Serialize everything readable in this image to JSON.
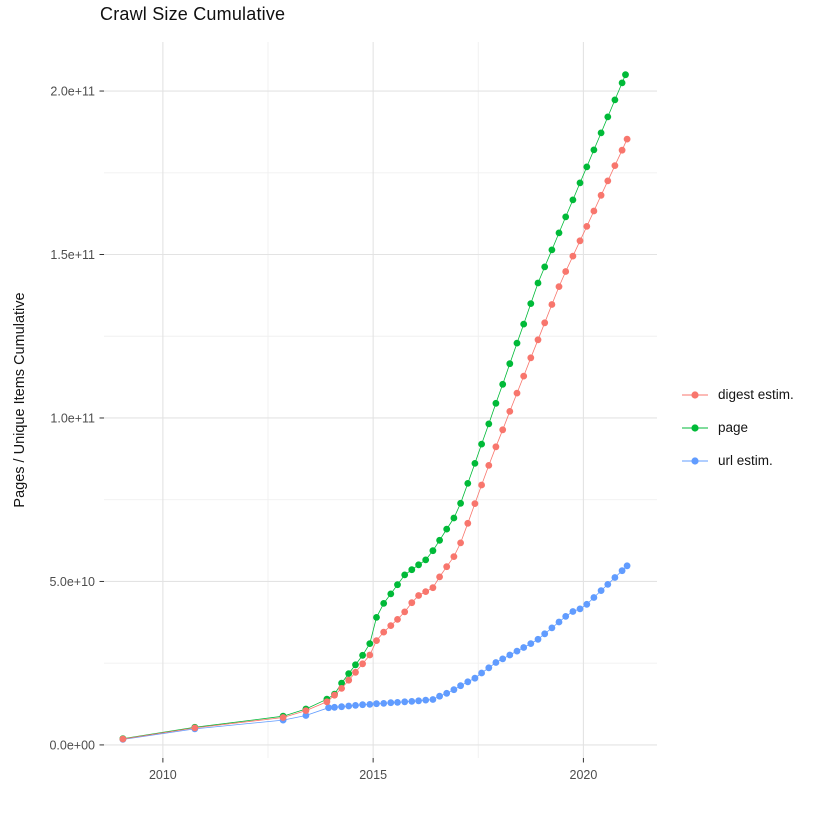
{
  "title": "Crawl Size Cumulative",
  "chart_data": {
    "type": "scatter",
    "title": "Crawl Size Cumulative",
    "xlabel": "",
    "ylabel": "Pages / Unique Items Cumulative",
    "grid": true,
    "legend_position": "right",
    "x_ticks": [
      {
        "label": "2010",
        "value": 2010
      },
      {
        "label": "2015",
        "value": 2015
      },
      {
        "label": "2020",
        "value": 2020
      }
    ],
    "x_minor": [
      2012.5,
      2017.5
    ],
    "y_ticks": [
      {
        "label": "0.0e+00",
        "billions": 0
      },
      {
        "label": "5.0e+10",
        "billions": 50
      },
      {
        "label": "1.0e+11",
        "billions": 100
      },
      {
        "label": "1.5e+11",
        "billions": 150
      },
      {
        "label": "2.0e+11",
        "billions": 200
      }
    ],
    "y_minor_billions": [
      25,
      75,
      125,
      175
    ],
    "xlim": [
      2008.6,
      2021.75
    ],
    "ylim_billions": [
      -4,
      215
    ],
    "y_unit": "pages / unique items (value in billions)",
    "series": [
      {
        "name": "digest estim.",
        "color": "#F8766D",
        "points_year_billions": [
          [
            2009.05,
            1.8
          ],
          [
            2010.76,
            5.2
          ],
          [
            2012.86,
            8.4
          ],
          [
            2013.4,
            10.5
          ],
          [
            2013.9,
            13.2
          ],
          [
            2014.08,
            15.2
          ],
          [
            2014.25,
            17.3
          ],
          [
            2014.42,
            19.8
          ],
          [
            2014.58,
            22.2
          ],
          [
            2014.75,
            24.8
          ],
          [
            2014.92,
            27.5
          ],
          [
            2015.08,
            31.9
          ],
          [
            2015.25,
            34.5
          ],
          [
            2015.42,
            36.5
          ],
          [
            2015.58,
            38.4
          ],
          [
            2015.75,
            40.7
          ],
          [
            2015.92,
            43.5
          ],
          [
            2016.08,
            45.7
          ],
          [
            2016.25,
            46.9
          ],
          [
            2016.42,
            48.1
          ],
          [
            2016.58,
            51.4
          ],
          [
            2016.75,
            54.5
          ],
          [
            2016.92,
            57.6
          ],
          [
            2017.08,
            61.8
          ],
          [
            2017.25,
            67.8
          ],
          [
            2017.42,
            73.8
          ],
          [
            2017.58,
            79.5
          ],
          [
            2017.75,
            85.5
          ],
          [
            2017.92,
            91.2
          ],
          [
            2018.08,
            96.4
          ],
          [
            2018.25,
            102.0
          ],
          [
            2018.42,
            107.6
          ],
          [
            2018.58,
            112.8
          ],
          [
            2018.75,
            118.4
          ],
          [
            2018.92,
            123.9
          ],
          [
            2019.08,
            129.1
          ],
          [
            2019.25,
            134.7
          ],
          [
            2019.42,
            140.2
          ],
          [
            2019.58,
            144.8
          ],
          [
            2019.75,
            149.5
          ],
          [
            2019.92,
            154.2
          ],
          [
            2020.08,
            158.6
          ],
          [
            2020.25,
            163.3
          ],
          [
            2020.42,
            168.1
          ],
          [
            2020.58,
            172.5
          ],
          [
            2020.75,
            177.2
          ],
          [
            2020.92,
            181.9
          ],
          [
            2021.04,
            185.3
          ]
        ]
      },
      {
        "name": "page",
        "color": "#00BA38",
        "points_year_billions": [
          [
            2009.05,
            1.9
          ],
          [
            2010.76,
            5.4
          ],
          [
            2012.86,
            8.8
          ],
          [
            2013.4,
            11.0
          ],
          [
            2013.9,
            14.0
          ],
          [
            2014.08,
            15.5
          ],
          [
            2014.25,
            18.9
          ],
          [
            2014.42,
            21.8
          ],
          [
            2014.58,
            24.5
          ],
          [
            2014.75,
            27.4
          ],
          [
            2014.92,
            31.0
          ],
          [
            2015.08,
            39.0
          ],
          [
            2015.25,
            43.3
          ],
          [
            2015.42,
            46.2
          ],
          [
            2015.58,
            49.0
          ],
          [
            2015.75,
            52.0
          ],
          [
            2015.92,
            53.6
          ],
          [
            2016.08,
            55.1
          ],
          [
            2016.25,
            56.6
          ],
          [
            2016.42,
            59.4
          ],
          [
            2016.58,
            62.6
          ],
          [
            2016.75,
            66.0
          ],
          [
            2016.92,
            69.4
          ],
          [
            2017.08,
            73.9
          ],
          [
            2017.25,
            80.0
          ],
          [
            2017.42,
            86.1
          ],
          [
            2017.58,
            92.0
          ],
          [
            2017.75,
            98.2
          ],
          [
            2017.92,
            104.5
          ],
          [
            2018.08,
            110.3
          ],
          [
            2018.25,
            116.6
          ],
          [
            2018.42,
            122.9
          ],
          [
            2018.58,
            128.7
          ],
          [
            2018.75,
            135.0
          ],
          [
            2018.92,
            141.3
          ],
          [
            2019.08,
            146.2
          ],
          [
            2019.25,
            151.4
          ],
          [
            2019.42,
            156.6
          ],
          [
            2019.58,
            161.5
          ],
          [
            2019.75,
            166.7
          ],
          [
            2019.92,
            171.9
          ],
          [
            2020.08,
            176.8
          ],
          [
            2020.25,
            182.0
          ],
          [
            2020.42,
            187.2
          ],
          [
            2020.58,
            192.1
          ],
          [
            2020.75,
            197.3
          ],
          [
            2020.92,
            202.5
          ],
          [
            2021.0,
            205.0
          ]
        ]
      },
      {
        "name": "url estim.",
        "color": "#619CFF",
        "points_year_billions": [
          [
            2009.05,
            1.7
          ],
          [
            2010.76,
            4.9
          ],
          [
            2012.86,
            7.6
          ],
          [
            2013.4,
            9.0
          ],
          [
            2013.94,
            11.4
          ],
          [
            2014.08,
            11.5
          ],
          [
            2014.25,
            11.7
          ],
          [
            2014.42,
            11.9
          ],
          [
            2014.58,
            12.1
          ],
          [
            2014.75,
            12.3
          ],
          [
            2014.92,
            12.4
          ],
          [
            2015.08,
            12.6
          ],
          [
            2015.25,
            12.7
          ],
          [
            2015.42,
            12.9
          ],
          [
            2015.58,
            13.0
          ],
          [
            2015.75,
            13.2
          ],
          [
            2015.92,
            13.3
          ],
          [
            2016.08,
            13.5
          ],
          [
            2016.25,
            13.7
          ],
          [
            2016.42,
            13.9
          ],
          [
            2016.58,
            14.9
          ],
          [
            2016.75,
            15.8
          ],
          [
            2016.92,
            16.9
          ],
          [
            2017.08,
            18.1
          ],
          [
            2017.25,
            19.3
          ],
          [
            2017.42,
            20.4
          ],
          [
            2017.58,
            22.0
          ],
          [
            2017.75,
            23.6
          ],
          [
            2017.92,
            25.2
          ],
          [
            2018.08,
            26.3
          ],
          [
            2018.25,
            27.5
          ],
          [
            2018.42,
            28.7
          ],
          [
            2018.58,
            29.8
          ],
          [
            2018.75,
            31.0
          ],
          [
            2018.92,
            32.3
          ],
          [
            2019.08,
            34.0
          ],
          [
            2019.25,
            35.8
          ],
          [
            2019.42,
            37.6
          ],
          [
            2019.58,
            39.3
          ],
          [
            2019.75,
            40.8
          ],
          [
            2019.92,
            41.6
          ],
          [
            2020.08,
            43.0
          ],
          [
            2020.25,
            45.1
          ],
          [
            2020.42,
            47.2
          ],
          [
            2020.58,
            49.1
          ],
          [
            2020.75,
            51.2
          ],
          [
            2020.92,
            53.3
          ],
          [
            2021.04,
            54.8
          ]
        ]
      }
    ],
    "legend": {
      "items": [
        {
          "label": "digest estim."
        },
        {
          "label": "page"
        },
        {
          "label": "url estim."
        }
      ]
    }
  }
}
